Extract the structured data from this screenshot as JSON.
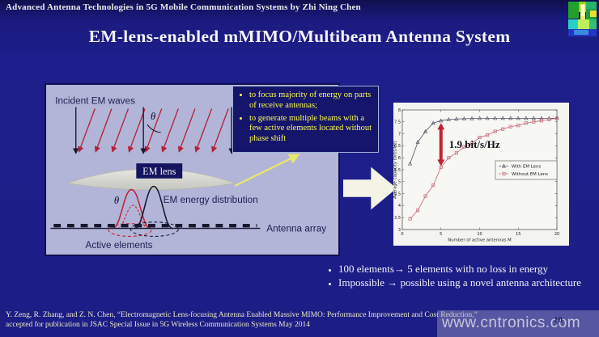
{
  "slide": {
    "header": "Advanced Antenna Technologies in 5G Mobile Communication Systems by Zhi Ning Chen",
    "title": "EM-lens-enabled mMIMO/Multibeam Antenna System",
    "page_number": "10"
  },
  "colors": {
    "slide_background": "#1e1e8c",
    "diagram_background": "#b2b5d8",
    "callout_background": "#15156c",
    "callout_text": "#fdfd50",
    "accent_red": "#c22233",
    "footer_text": "#e9e9c6"
  },
  "diagram": {
    "labels": {
      "incident": "Incident EM waves",
      "theta": "θ",
      "lens": "EM lens",
      "energy": "EM energy distribution",
      "array": "Antenna array",
      "active": "Active elements"
    }
  },
  "callout": {
    "bullets": [
      "to focus majority of energy on parts of receive antennas;",
      "to generate multiple beams with a few active elements located without phase shift"
    ]
  },
  "chart_data": {
    "type": "line",
    "title": "",
    "xlabel": "Number of active antennas M",
    "ylabel": "Average capacity (bit/s/Hz)",
    "xlim": [
      0,
      20
    ],
    "ylim": [
      3,
      8
    ],
    "xticks": [
      0,
      5,
      10,
      15,
      20
    ],
    "yticks": [
      3,
      3.5,
      4,
      4.5,
      5,
      5.5,
      6,
      6.5,
      7,
      7.5,
      8
    ],
    "grid": false,
    "legend_position": "middle-right",
    "x": [
      1,
      2,
      3,
      4,
      5,
      6,
      7,
      8,
      9,
      10,
      11,
      12,
      13,
      14,
      15,
      16,
      17,
      18,
      19,
      20
    ],
    "series": [
      {
        "name": "With EM Lens",
        "marker": "triangle",
        "color": "#555566",
        "values": [
          5.75,
          6.65,
          7.1,
          7.45,
          7.55,
          7.6,
          7.62,
          7.63,
          7.64,
          7.65,
          7.65,
          7.65,
          7.65,
          7.65,
          7.65,
          7.65,
          7.65,
          7.65,
          7.65,
          7.65
        ]
      },
      {
        "name": "Without EM Lens",
        "marker": "square",
        "color": "#c46a78",
        "values": [
          3.45,
          3.8,
          4.4,
          4.85,
          5.6,
          6.0,
          6.2,
          6.45,
          6.6,
          6.85,
          6.95,
          7.1,
          7.2,
          7.3,
          7.35,
          7.45,
          7.5,
          7.55,
          7.6,
          7.65
        ]
      }
    ],
    "annotation": {
      "text": "1.9 bit/s/Hz",
      "x": 5,
      "y_from": 5.65,
      "y_to": 7.45
    }
  },
  "takeaways": {
    "bullets": [
      "100 elements→ 5 elements with no loss in energy",
      "Impossible → possible using a novel antenna architecture"
    ]
  },
  "footer": {
    "citation_line1": "Y. Zeng, R. Zhang, and Z. N. Chen, “Electromagnetic Lens-focusing Antenna Enabled Massive MIMO: Performance Improvement and Cost Reduction,”",
    "citation_line2": "accepted for  publication in JSAC Special Issue in 5G Wireless Communication Systems May 2014"
  },
  "watermark": "www.cntronics.com"
}
